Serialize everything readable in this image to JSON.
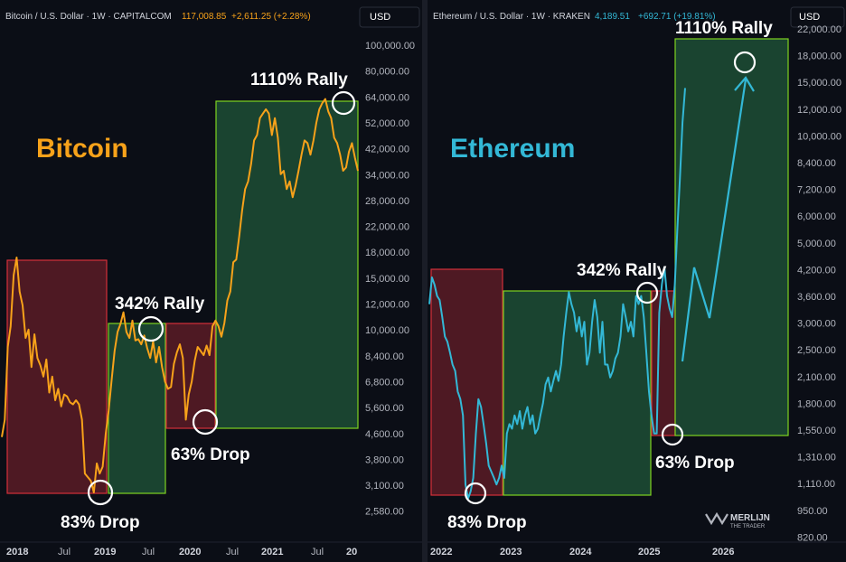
{
  "chart_data": [
    {
      "type": "line",
      "title": "Bitcoin",
      "header": {
        "symbol": "Bitcoin / U.S. Dollar · 1W · CAPITALCOM",
        "price": "117,008.85",
        "change": "+2,611.25 (+2.28%)"
      },
      "currency_button": "USD",
      "x_labels": [
        "2018",
        "Jul",
        "2019",
        "Jul",
        "2020",
        "Jul",
        "2021",
        "Jul",
        "20"
      ],
      "y_ticks": [
        "100,000.00",
        "80,000.00",
        "64,000.00",
        "52,000.00",
        "42,000.00",
        "34,000.00",
        "28,000.00",
        "22,000.00",
        "18,000.00",
        "15,000.00",
        "12,000.00",
        "10,000.00",
        "8,400.00",
        "6,800.00",
        "5,600.00",
        "4,600.00",
        "3,800.00",
        "3,100.00",
        "2,580.00"
      ],
      "series": [
        {
          "name": "BTC/USD",
          "color": "#f7a21a",
          "values": [
            4900,
            5600,
            9800,
            11500,
            17000,
            19500,
            15000,
            13500,
            10500,
            11200,
            8400,
            10800,
            9000,
            8500,
            7800,
            8900,
            6900,
            7800,
            6500,
            7100,
            6200,
            6800,
            6700,
            6400,
            6300,
            6500,
            6300,
            5600,
            3700,
            3600,
            3500,
            3200,
            4000,
            3700,
            3900,
            5000,
            6000,
            7600,
            9500,
            11000,
            11700,
            12800,
            11000,
            10500,
            12000,
            10300,
            10400,
            10000,
            10700,
            9700,
            9000,
            10200,
            8700,
            9800,
            8400,
            7500,
            7100,
            7200,
            8600,
            9400,
            10000,
            9000,
            5600,
            6800,
            7500,
            8800,
            9800,
            9500,
            9200,
            9900,
            9200,
            11500,
            12000,
            11500,
            10600,
            11800,
            14000,
            15000,
            18800,
            19200,
            23000,
            28000,
            33000,
            35000,
            40000,
            48000,
            50000,
            57000,
            59000,
            61000,
            59000,
            50000,
            57000,
            49000,
            37000,
            38000,
            33000,
            35000,
            31000,
            34000,
            38000,
            43000,
            48000,
            47000,
            43000,
            48000,
            55000,
            61000,
            64000,
            66000,
            60000,
            57000,
            49000,
            47000,
            43000,
            38000,
            39000,
            44000,
            47000,
            42000,
            38000
          ]
        }
      ],
      "annotations": [
        {
          "text": "83% Drop"
        },
        {
          "text": "342% Rally"
        },
        {
          "text": "63% Drop"
        },
        {
          "text": "1110% Rally"
        }
      ]
    },
    {
      "type": "line",
      "title": "Ethereum",
      "header": {
        "symbol": "Ethereum / U.S. Dollar · 1W · KRAKEN",
        "price": "4,189.51",
        "change": "+692.71 (+19.81%)"
      },
      "currency_button": "USD",
      "x_labels": [
        "2022",
        "2023",
        "2024",
        "2025",
        "2026"
      ],
      "y_ticks": [
        "22,000.00",
        "18,000.00",
        "15,000.00",
        "12,000.00",
        "10,000.00",
        "8,400.00",
        "7,200.00",
        "6,000.00",
        "5,000.00",
        "4,200.00",
        "3,600.00",
        "3,000.00",
        "2,500.00",
        "2,100.00",
        "1,800.00",
        "1,550.00",
        "1,310.00",
        "1,110.00",
        "950.00",
        "820.00"
      ],
      "series": [
        {
          "name": "ETH/USD",
          "color": "#33b8d6",
          "values": [
            3700,
            4400,
            4200,
            3900,
            3800,
            3400,
            3000,
            2900,
            2700,
            2500,
            2400,
            2100,
            2000,
            1800,
            1150,
            1050,
            1100,
            1200,
            1600,
            2000,
            1900,
            1700,
            1500,
            1300,
            1250,
            1200,
            1150,
            1200,
            1300,
            1200,
            1600,
            1700,
            1650,
            1800,
            1700,
            1850,
            1650,
            1800,
            1900,
            1700,
            1800,
            1600,
            1650,
            1800,
            1950,
            2200,
            2300,
            2100,
            2250,
            2400,
            2250,
            2500,
            3000,
            3500,
            4000,
            3700,
            3500,
            3100,
            3400,
            3000,
            3300,
            2500,
            2700,
            3300,
            3800,
            3400,
            2700,
            3300,
            2500,
            2500,
            2300,
            2400,
            2600,
            2700,
            3000,
            3700,
            3400,
            3100,
            3300,
            3000,
            3900,
            3700,
            3900,
            3400,
            2700,
            2100,
            1800,
            1600,
            1600,
            3500,
            4200,
            4700,
            3900,
            3600,
            3400,
            4200,
            6000,
            8400,
            12000,
            15000
          ]
        }
      ],
      "annotations": [
        {
          "text": "83% Drop"
        },
        {
          "text": "342% Rally"
        },
        {
          "text": "63% Drop"
        },
        {
          "text": "1110% Rally"
        }
      ],
      "watermark": {
        "line1": "MERLIJN",
        "line2": "THE TRADER"
      }
    }
  ]
}
